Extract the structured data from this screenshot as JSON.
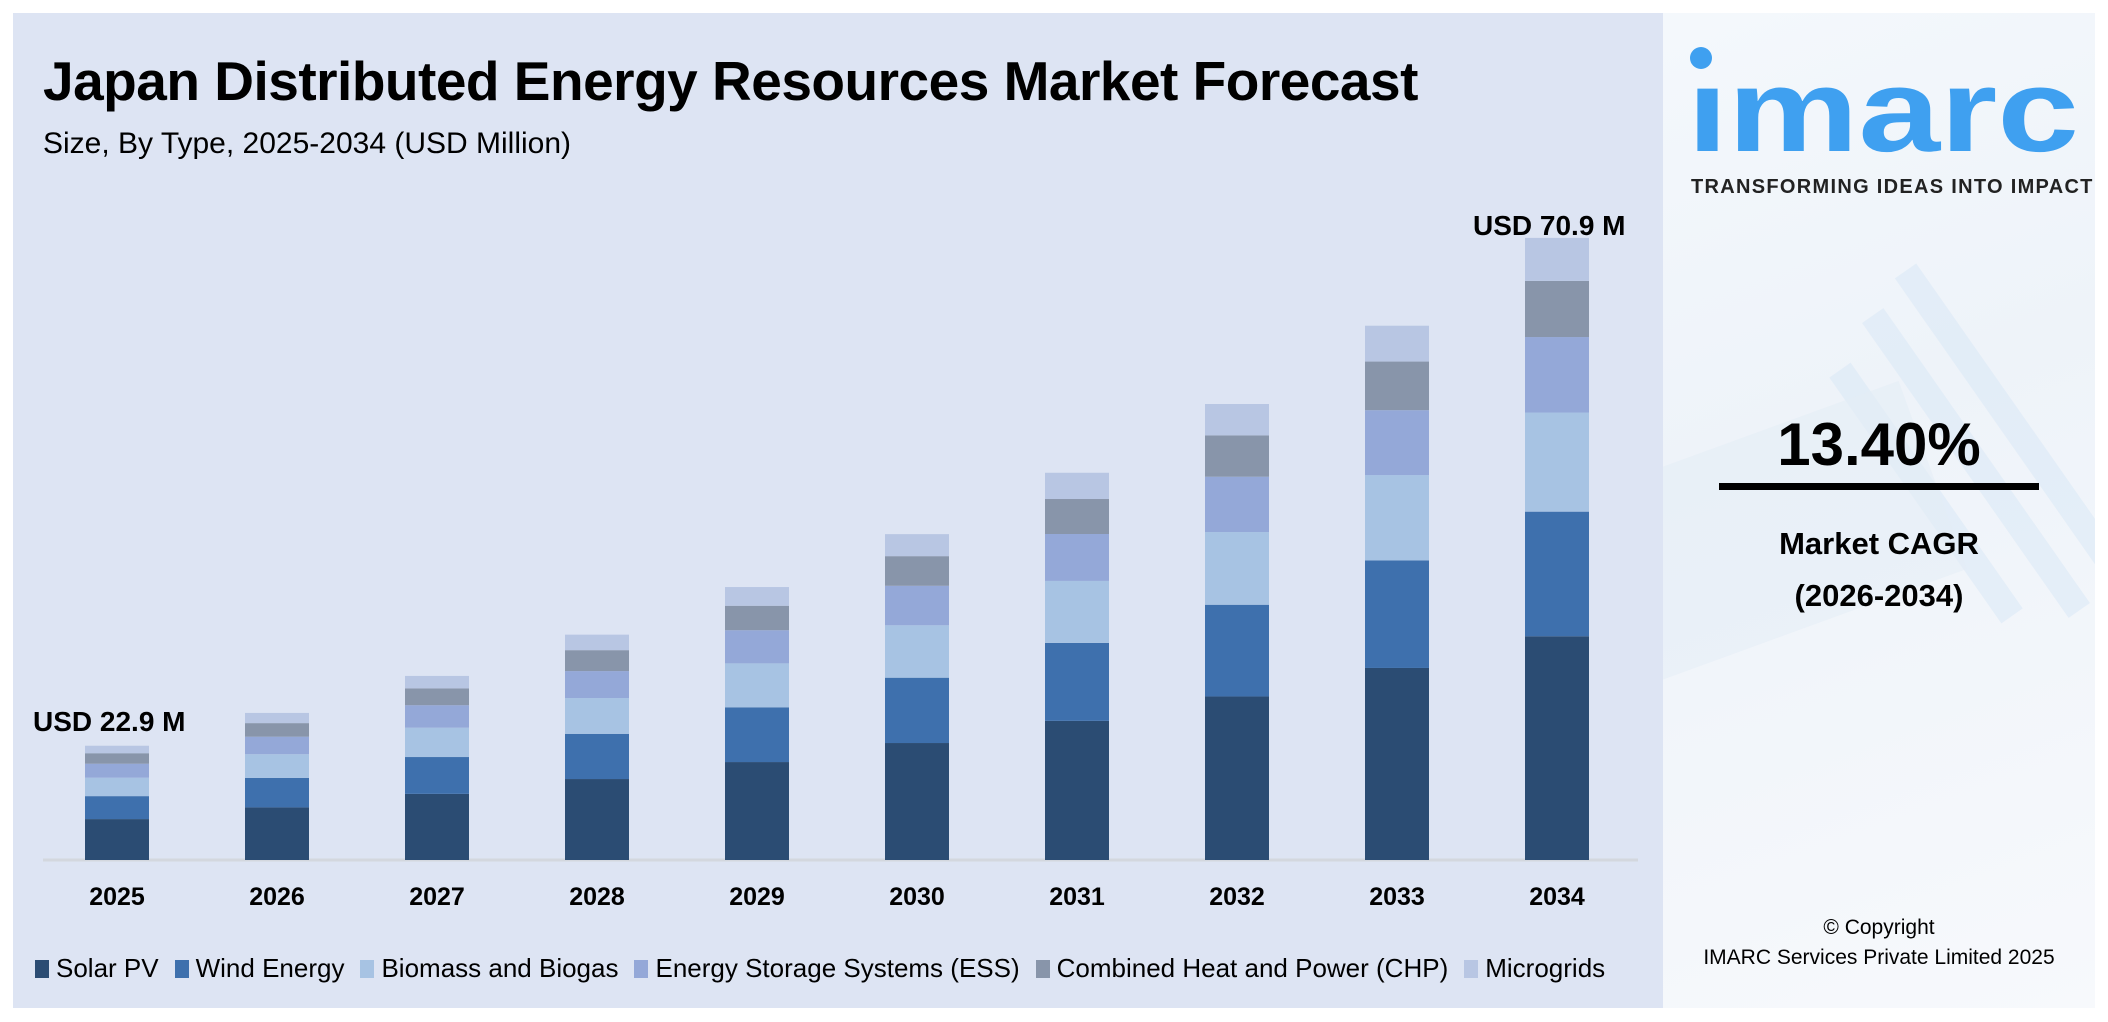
{
  "header": {
    "title": "Japan Distributed Energy Resources Market Forecast",
    "subtitle": "Size, By Type, 2025-2034 (USD Million)"
  },
  "chart_data": {
    "type": "bar",
    "stacked": true,
    "title": "Japan Distributed Energy Resources Market Forecast",
    "subtitle": "Size, By Type, 2025-2034 (USD Million)",
    "xlabel": "",
    "ylabel": "",
    "categories": [
      "2025",
      "2026",
      "2027",
      "2028",
      "2029",
      "2030",
      "2031",
      "2032",
      "2033",
      "2034"
    ],
    "totals": [
      22.9,
      26.0,
      29.5,
      33.4,
      37.9,
      42.9,
      48.7,
      55.2,
      62.6,
      70.9
    ],
    "series": [
      {
        "name": "Solar PV",
        "color": "#2b4c73",
        "values": [
          8.2,
          9.3,
          10.6,
          12.0,
          13.6,
          15.4,
          17.5,
          19.8,
          22.5,
          25.5
        ]
      },
      {
        "name": "Wind Energy",
        "color": "#3e70ad",
        "values": [
          4.6,
          5.2,
          5.9,
          6.7,
          7.6,
          8.6,
          9.8,
          11.1,
          12.6,
          14.2
        ]
      },
      {
        "name": "Biomass and Biogas",
        "color": "#a7c3e3",
        "values": [
          3.7,
          4.2,
          4.7,
          5.3,
          6.1,
          6.9,
          7.8,
          8.8,
          10.0,
          11.3
        ]
      },
      {
        "name": "Energy Storage Systems (ESS)",
        "color": "#94a8d8",
        "values": [
          2.8,
          3.1,
          3.6,
          4.0,
          4.6,
          5.2,
          5.9,
          6.7,
          7.6,
          8.6
        ]
      },
      {
        "name": "Combined Heat and Power (CHP)",
        "color": "#8895aa",
        "values": [
          2.1,
          2.4,
          2.7,
          3.1,
          3.4,
          3.9,
          4.4,
          5.0,
          5.7,
          6.4
        ]
      },
      {
        "name": "Microgrids",
        "color": "#b8c6e3",
        "values": [
          1.5,
          1.8,
          2.0,
          2.3,
          2.6,
          2.9,
          3.3,
          3.8,
          4.2,
          4.9
        ]
      }
    ],
    "annotations": {
      "first": "USD 22.9 M",
      "last": "USD 70.9 M"
    },
    "grid": false,
    "y_axis_shown": false,
    "legend_position": "bottom"
  },
  "side": {
    "logo_text": "imarc",
    "tagline": "TRANSFORMING IDEAS INTO IMPACT",
    "cagr_value": "13.40%",
    "cagr_label": "Market CAGR",
    "cagr_period": "(2026-2034)",
    "copyright_line1": "© Copyright",
    "copyright_line2": "IMARC Services Private Limited 2025",
    "brand_color": "#3fa0f0"
  }
}
